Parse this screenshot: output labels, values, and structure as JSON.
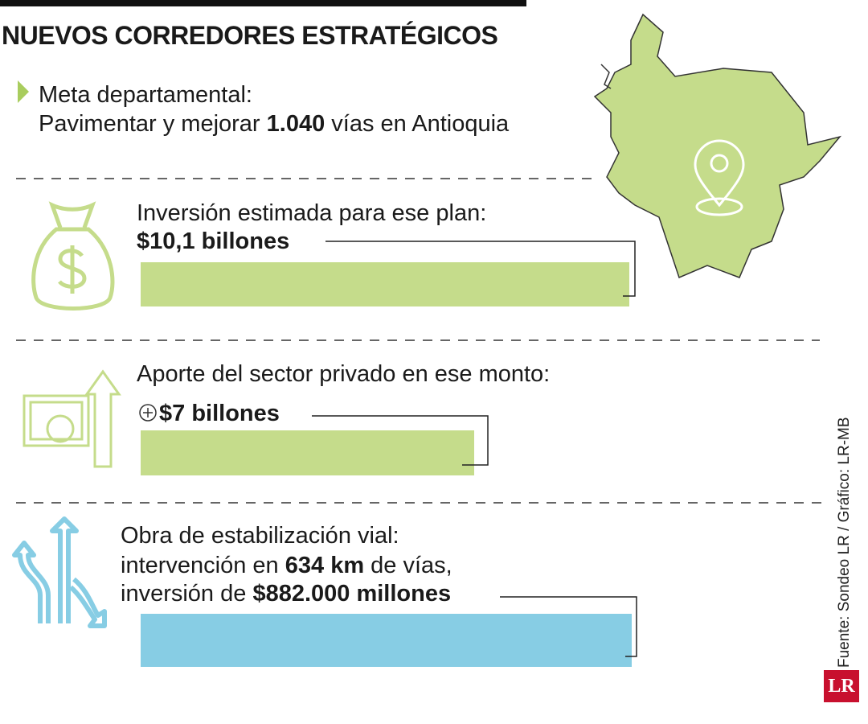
{
  "header": {
    "title": "NUEVOS CORREDORES ESTRATÉGICOS"
  },
  "goal": {
    "label": "Meta departamental:",
    "text_before": "Pavimentar y mejorar",
    "highlight": "1.040",
    "text_after": "vías en Antioquia"
  },
  "items": [
    {
      "label": "Inversión estimada para ese plan:",
      "value": "$10,1 billones"
    },
    {
      "label": "Aporte del sector privado en ese monto:",
      "value": "$7 billones"
    },
    {
      "label": "Obra de estabilización vial:",
      "line2_before": "intervención en",
      "line2_highlight": "634 km",
      "line2_after": "de vías,",
      "line3_before": "inversión de",
      "line3_highlight": "$882.000 millones"
    }
  ],
  "footer": {
    "source": "Fuente: Sondeo LR / Gráfico: LR-MB",
    "logo": "LR"
  }
}
